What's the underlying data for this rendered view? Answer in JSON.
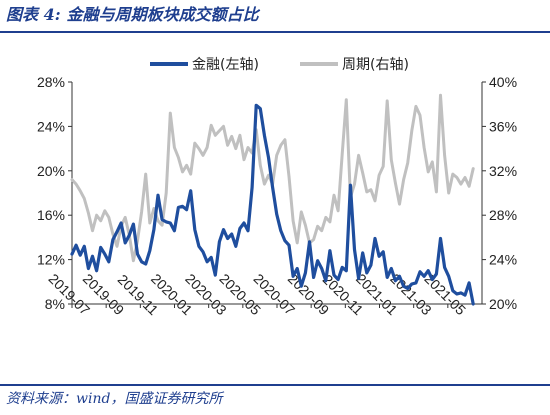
{
  "header": {
    "figure_no": "图表 4:",
    "title": "金融与周期板块成交额占比"
  },
  "footer": {
    "source": "资料来源：wind，国盛证券研究所"
  },
  "colors": {
    "header": "#1f3f8f",
    "series_finance": "#1f4e9e",
    "series_cyclical": "#c0c0c0"
  },
  "chart_data": {
    "type": "line",
    "legend_position": "top",
    "grid": false,
    "x_axis": {
      "type": "date",
      "range": [
        "2019-07-01",
        "2021-06-01"
      ],
      "tick_labels": [
        "2019-07",
        "2019-09",
        "2019-11",
        "2020-01",
        "2020-03",
        "2020-05",
        "2020-07",
        "2020-09",
        "2020-11",
        "2021-01",
        "2021-03",
        "2021-05"
      ]
    },
    "y_left": {
      "range": [
        8,
        28
      ],
      "unit": "%",
      "tick_labels": [
        "8%",
        "12%",
        "16%",
        "20%",
        "24%",
        "28%"
      ]
    },
    "y_right": {
      "range": [
        20,
        40
      ],
      "unit": "%",
      "tick_labels": [
        "20%",
        "24%",
        "28%",
        "32%",
        "36%",
        "40%"
      ]
    },
    "series": [
      {
        "name": "金融(左轴)",
        "axis": "left",
        "color": "#1f4e9e",
        "points": [
          [
            "2019-07-01",
            12.5
          ],
          [
            "2019-07-08",
            13.3
          ],
          [
            "2019-07-15",
            12.4
          ],
          [
            "2019-07-22",
            13.2
          ],
          [
            "2019-07-29",
            11.2
          ],
          [
            "2019-08-05",
            12.3
          ],
          [
            "2019-08-12",
            11.0
          ],
          [
            "2019-08-19",
            13.1
          ],
          [
            "2019-08-26",
            12.5
          ],
          [
            "2019-09-02",
            11.8
          ],
          [
            "2019-09-09",
            13.8
          ],
          [
            "2019-09-16",
            14.5
          ],
          [
            "2019-09-23",
            15.3
          ],
          [
            "2019-09-30",
            13.5
          ],
          [
            "2019-10-07",
            14.2
          ],
          [
            "2019-10-14",
            15.2
          ],
          [
            "2019-10-21",
            12.5
          ],
          [
            "2019-10-28",
            11.8
          ],
          [
            "2019-11-04",
            11.6
          ],
          [
            "2019-11-11",
            12.8
          ],
          [
            "2019-11-18",
            14.7
          ],
          [
            "2019-11-25",
            17.8
          ],
          [
            "2019-12-02",
            15.6
          ],
          [
            "2019-12-09",
            15.4
          ],
          [
            "2019-12-16",
            15.3
          ],
          [
            "2019-12-23",
            14.6
          ],
          [
            "2019-12-30",
            16.7
          ],
          [
            "2020-01-06",
            16.8
          ],
          [
            "2020-01-13",
            16.5
          ],
          [
            "2020-01-20",
            18.2
          ],
          [
            "2020-01-27",
            14.7
          ],
          [
            "2020-02-03",
            13.2
          ],
          [
            "2020-02-10",
            12.7
          ],
          [
            "2020-02-17",
            11.8
          ],
          [
            "2020-02-24",
            12.2
          ],
          [
            "2020-03-02",
            10.6
          ],
          [
            "2020-03-09",
            13.6
          ],
          [
            "2020-03-16",
            14.7
          ],
          [
            "2020-03-23",
            13.9
          ],
          [
            "2020-03-30",
            14.3
          ],
          [
            "2020-04-06",
            13.2
          ],
          [
            "2020-04-13",
            14.8
          ],
          [
            "2020-04-20",
            15.3
          ],
          [
            "2020-04-27",
            14.6
          ],
          [
            "2020-05-04",
            18.5
          ],
          [
            "2020-05-11",
            25.9
          ],
          [
            "2020-05-18",
            25.6
          ],
          [
            "2020-05-25",
            23.2
          ],
          [
            "2020-06-01",
            21.2
          ],
          [
            "2020-06-08",
            18.5
          ],
          [
            "2020-06-15",
            16.1
          ],
          [
            "2020-06-22",
            14.6
          ],
          [
            "2020-06-29",
            13.7
          ],
          [
            "2020-07-06",
            13.3
          ],
          [
            "2020-07-13",
            10.5
          ],
          [
            "2020-07-20",
            11.2
          ],
          [
            "2020-07-27",
            9.6
          ],
          [
            "2020-08-03",
            10.8
          ],
          [
            "2020-08-10",
            13.6
          ],
          [
            "2020-08-17",
            10.4
          ],
          [
            "2020-08-24",
            11.9
          ],
          [
            "2020-08-31",
            11.2
          ],
          [
            "2020-09-07",
            10.1
          ],
          [
            "2020-09-14",
            12.8
          ],
          [
            "2020-09-21",
            10.6
          ],
          [
            "2020-09-28",
            10.2
          ],
          [
            "2020-10-05",
            11.3
          ],
          [
            "2020-10-12",
            11.0
          ],
          [
            "2020-10-19",
            18.7
          ],
          [
            "2020-10-26",
            12.9
          ],
          [
            "2020-11-02",
            10.3
          ],
          [
            "2020-11-09",
            12.6
          ],
          [
            "2020-11-16",
            10.8
          ],
          [
            "2020-11-23",
            11.5
          ],
          [
            "2020-11-30",
            13.9
          ],
          [
            "2020-12-07",
            12.3
          ],
          [
            "2020-12-14",
            12.7
          ],
          [
            "2020-12-21",
            10.4
          ],
          [
            "2020-12-28",
            11.2
          ],
          [
            "2021-01-04",
            10.1
          ],
          [
            "2021-01-11",
            10.5
          ],
          [
            "2021-01-18",
            9.6
          ],
          [
            "2021-01-25",
            9.4
          ],
          [
            "2021-02-01",
            9.8
          ],
          [
            "2021-02-08",
            9.9
          ],
          [
            "2021-02-15",
            10.9
          ],
          [
            "2021-02-22",
            10.5
          ],
          [
            "2021-03-01",
            11.0
          ],
          [
            "2021-03-08",
            10.2
          ],
          [
            "2021-03-15",
            10.7
          ],
          [
            "2021-03-22",
            13.9
          ],
          [
            "2021-03-29",
            11.3
          ],
          [
            "2021-04-05",
            10.5
          ],
          [
            "2021-04-12",
            9.2
          ],
          [
            "2021-04-19",
            8.9
          ],
          [
            "2021-04-26",
            9.0
          ],
          [
            "2021-05-03",
            8.8
          ],
          [
            "2021-05-10",
            9.9
          ],
          [
            "2021-05-17",
            8.0
          ]
        ]
      },
      {
        "name": "周期(右轴)",
        "axis": "right",
        "color": "#c0c0c0",
        "points": [
          [
            "2019-07-01",
            31.2
          ],
          [
            "2019-07-08",
            30.8
          ],
          [
            "2019-07-15",
            30.2
          ],
          [
            "2019-07-22",
            29.5
          ],
          [
            "2019-07-29",
            28.2
          ],
          [
            "2019-08-05",
            26.6
          ],
          [
            "2019-08-12",
            28.0
          ],
          [
            "2019-08-19",
            27.5
          ],
          [
            "2019-08-26",
            28.4
          ],
          [
            "2019-09-02",
            27.8
          ],
          [
            "2019-09-09",
            26.3
          ],
          [
            "2019-09-16",
            25.2
          ],
          [
            "2019-09-23",
            27.0
          ],
          [
            "2019-09-30",
            27.8
          ],
          [
            "2019-10-07",
            26.2
          ],
          [
            "2019-10-14",
            23.9
          ],
          [
            "2019-10-21",
            25.7
          ],
          [
            "2019-10-28",
            28.3
          ],
          [
            "2019-11-04",
            31.7
          ],
          [
            "2019-11-11",
            27.3
          ],
          [
            "2019-11-18",
            28.6
          ],
          [
            "2019-11-25",
            27.5
          ],
          [
            "2019-12-02",
            27.1
          ],
          [
            "2019-12-09",
            30.0
          ],
          [
            "2019-12-16",
            37.2
          ],
          [
            "2019-12-23",
            34.1
          ],
          [
            "2019-12-30",
            33.2
          ],
          [
            "2020-01-06",
            31.9
          ],
          [
            "2020-01-13",
            32.5
          ],
          [
            "2020-01-20",
            31.7
          ],
          [
            "2020-01-27",
            34.5
          ],
          [
            "2020-02-03",
            34.0
          ],
          [
            "2020-02-10",
            33.4
          ],
          [
            "2020-02-17",
            34.1
          ],
          [
            "2020-02-24",
            36.1
          ],
          [
            "2020-03-02",
            35.2
          ],
          [
            "2020-03-09",
            35.6
          ],
          [
            "2020-03-16",
            36.0
          ],
          [
            "2020-03-23",
            34.3
          ],
          [
            "2020-03-30",
            35.1
          ],
          [
            "2020-04-06",
            34.0
          ],
          [
            "2020-04-13",
            35.2
          ],
          [
            "2020-04-20",
            33.0
          ],
          [
            "2020-04-27",
            34.1
          ],
          [
            "2020-05-04",
            33.6
          ],
          [
            "2020-05-11",
            35.7
          ],
          [
            "2020-05-18",
            32.5
          ],
          [
            "2020-05-25",
            30.8
          ],
          [
            "2020-06-01",
            31.6
          ],
          [
            "2020-06-08",
            30.8
          ],
          [
            "2020-06-15",
            33.4
          ],
          [
            "2020-06-22",
            34.3
          ],
          [
            "2020-06-29",
            34.8
          ],
          [
            "2020-07-06",
            31.5
          ],
          [
            "2020-07-13",
            27.5
          ],
          [
            "2020-07-20",
            25.5
          ],
          [
            "2020-07-27",
            28.3
          ],
          [
            "2020-08-03",
            27.1
          ],
          [
            "2020-08-10",
            25.5
          ],
          [
            "2020-08-17",
            25.8
          ],
          [
            "2020-08-24",
            27.0
          ],
          [
            "2020-08-31",
            26.6
          ],
          [
            "2020-09-07",
            27.8
          ],
          [
            "2020-09-14",
            27.4
          ],
          [
            "2020-09-21",
            29.8
          ],
          [
            "2020-09-28",
            28.4
          ],
          [
            "2020-10-05",
            33.5
          ],
          [
            "2020-10-12",
            38.4
          ],
          [
            "2020-10-19",
            29.6
          ],
          [
            "2020-10-26",
            30.8
          ],
          [
            "2020-11-02",
            33.4
          ],
          [
            "2020-11-09",
            31.8
          ],
          [
            "2020-11-16",
            30.1
          ],
          [
            "2020-11-23",
            30.3
          ],
          [
            "2020-11-30",
            29.3
          ],
          [
            "2020-12-07",
            31.6
          ],
          [
            "2020-12-14",
            32.4
          ],
          [
            "2020-12-21",
            38.3
          ],
          [
            "2020-12-28",
            33.0
          ],
          [
            "2021-01-04",
            30.9
          ],
          [
            "2021-01-11",
            29.0
          ],
          [
            "2021-01-18",
            31.2
          ],
          [
            "2021-01-25",
            32.7
          ],
          [
            "2021-02-01",
            35.6
          ],
          [
            "2021-02-08",
            37.8
          ],
          [
            "2021-02-15",
            37.0
          ],
          [
            "2021-02-22",
            34.1
          ],
          [
            "2021-03-01",
            31.9
          ],
          [
            "2021-03-08",
            32.8
          ],
          [
            "2021-03-15",
            30.1
          ],
          [
            "2021-03-22",
            38.8
          ],
          [
            "2021-03-29",
            33.4
          ],
          [
            "2021-04-05",
            30.0
          ],
          [
            "2021-04-12",
            31.7
          ],
          [
            "2021-04-19",
            31.4
          ],
          [
            "2021-04-26",
            30.8
          ],
          [
            "2021-05-03",
            31.4
          ],
          [
            "2021-05-10",
            30.6
          ],
          [
            "2021-05-17",
            32.2
          ]
        ]
      }
    ]
  }
}
